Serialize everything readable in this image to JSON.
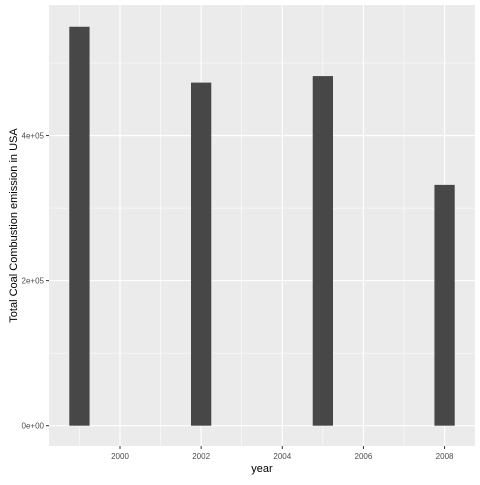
{
  "chart_data": {
    "type": "bar",
    "title": "",
    "xlabel": "year",
    "ylabel": "Total Coal Combustion emission in USA",
    "x": [
      1999,
      2002,
      2005,
      2008
    ],
    "values": [
      550000,
      473000,
      482000,
      332000
    ],
    "xlim": [
      1998.25,
      2008.75
    ],
    "ylim": [
      -28000,
      580000
    ],
    "x_ticks": [
      2000,
      2002,
      2004,
      2006,
      2008
    ],
    "x_tick_labels": [
      "2000",
      "2002",
      "2004",
      "2006",
      "2008"
    ],
    "y_ticks": [
      0,
      200000,
      400000
    ],
    "y_tick_labels": [
      "0e+00",
      "2e+05",
      "4e+05"
    ],
    "grid": true,
    "legend": "none",
    "colors": {
      "panel_background": "#ebebeb",
      "grid_major": "#ffffff",
      "bar_fill": "#474747",
      "tick_text": "#4d4d4d",
      "axis_title": "#000000"
    }
  }
}
